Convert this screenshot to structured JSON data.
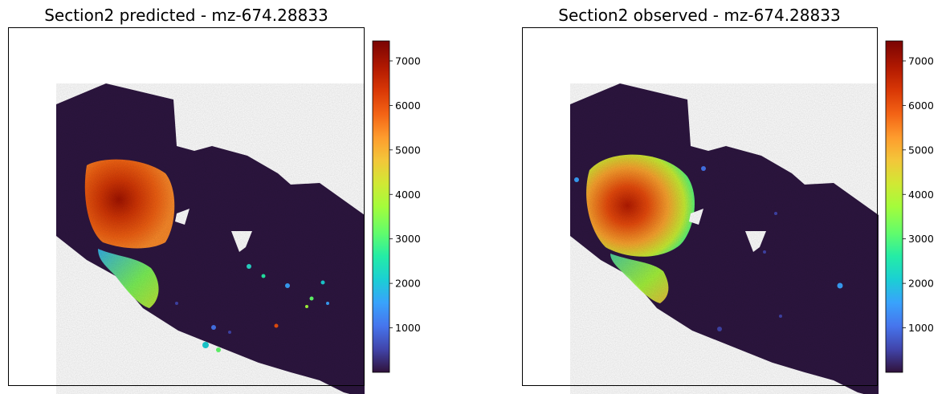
{
  "chart_data": [
    {
      "type": "heatmap",
      "title": "Section2 predicted - mz-674.28833",
      "colormap": "turbo",
      "colorbar": {
        "min": 0,
        "max": 7450,
        "ticks": [
          1000,
          2000,
          3000,
          4000,
          5000,
          6000,
          7000
        ]
      },
      "background": "#ffffff",
      "tissue_base_color": "#2d1640",
      "hotspot": {
        "region": "upper-left lobe",
        "peak_value": 7000
      }
    },
    {
      "type": "heatmap",
      "title": "Section2 observed - mz-674.28833",
      "colormap": "turbo",
      "colorbar": {
        "min": 0,
        "max": 7450,
        "ticks": [
          1000,
          2000,
          3000,
          4000,
          5000,
          6000,
          7000
        ]
      },
      "background": "#ffffff",
      "tissue_base_color": "#2d1640",
      "hotspot": {
        "region": "upper-left lobe",
        "peak_value": 7200
      }
    }
  ]
}
